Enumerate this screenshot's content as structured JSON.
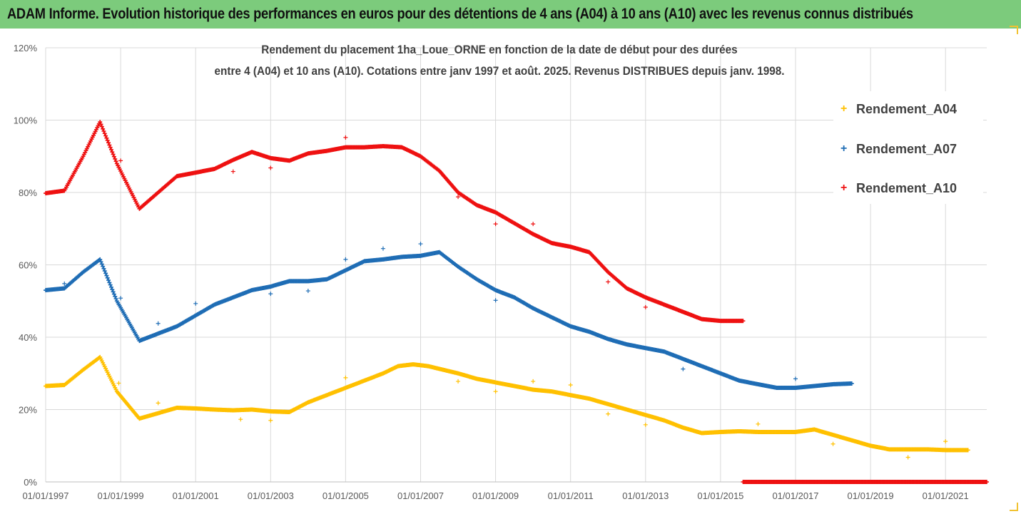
{
  "header": {
    "title": "ADAM Informe. Evolution historique des performances en euros pour des détentions de 4 ans (A04) à 10 ans (A10) avec les revenus connus distribués"
  },
  "chart_data": {
    "type": "scatter",
    "title": "Rendement du placement 1ha_Loue_ORNE en fonction de la date de début pour des durées",
    "subtitle": "entre 4 (A04) et 10 ans (A10). Cotations entre janv 1997 et août. 2025. Revenus DISTRIBUES depuis janv. 1998.",
    "xlabel": "",
    "ylabel": "",
    "x_ticks": [
      "01/01/1997",
      "01/01/1999",
      "01/01/2001",
      "01/01/2003",
      "01/01/2005",
      "01/01/2007",
      "01/01/2009",
      "01/01/2011",
      "01/01/2013",
      "01/01/2015",
      "01/01/2017",
      "01/01/2019",
      "01/01/2021"
    ],
    "y_ticks": [
      "0%",
      "20%",
      "40%",
      "60%",
      "80%",
      "100%",
      "120%"
    ],
    "xlim": [
      1997.0,
      2022.1
    ],
    "ylim": [
      0,
      120
    ],
    "y_unit": "%",
    "grid": true,
    "legend_position": "right",
    "series": [
      {
        "name": "Rendement_A04",
        "color": "#ffc000",
        "points": [
          [
            1997.0,
            26.5
          ],
          [
            1997.5,
            26.8
          ],
          [
            1998.0,
            31
          ],
          [
            1998.45,
            34.5
          ],
          [
            1998.9,
            25
          ],
          [
            1999.5,
            17.5
          ],
          [
            2000.0,
            19
          ],
          [
            2000.5,
            20.5
          ],
          [
            2001.0,
            20.3
          ],
          [
            2001.5,
            20
          ],
          [
            2002.0,
            19.8
          ],
          [
            2002.5,
            20
          ],
          [
            2003.0,
            19.5
          ],
          [
            2003.5,
            19.3
          ],
          [
            2004.0,
            22
          ],
          [
            2004.5,
            24
          ],
          [
            2005.0,
            26
          ],
          [
            2005.5,
            28
          ],
          [
            2006.0,
            30
          ],
          [
            2006.4,
            32
          ],
          [
            2006.8,
            32.5
          ],
          [
            2007.2,
            32
          ],
          [
            2007.6,
            31
          ],
          [
            2008.0,
            30
          ],
          [
            2008.5,
            28.5
          ],
          [
            2009.0,
            27.5
          ],
          [
            2009.5,
            26.5
          ],
          [
            2010.0,
            25.5
          ],
          [
            2010.5,
            25
          ],
          [
            2011.0,
            24
          ],
          [
            2011.5,
            23
          ],
          [
            2012.0,
            21.5
          ],
          [
            2012.5,
            20
          ],
          [
            2013.0,
            18.5
          ],
          [
            2013.5,
            17
          ],
          [
            2014.0,
            15
          ],
          [
            2014.5,
            13.5
          ],
          [
            2015.0,
            13.8
          ],
          [
            2015.5,
            14
          ],
          [
            2016.0,
            13.8
          ],
          [
            2016.5,
            13.8
          ],
          [
            2017.0,
            13.8
          ],
          [
            2017.5,
            14.5
          ],
          [
            2018.0,
            13
          ],
          [
            2018.5,
            11.5
          ],
          [
            2019.0,
            10
          ],
          [
            2019.5,
            9
          ],
          [
            2020.0,
            9
          ],
          [
            2020.5,
            9
          ],
          [
            2021.0,
            8.8
          ],
          [
            2021.6,
            8.8
          ]
        ],
        "outliers": [
          [
            1998.95,
            27.3
          ],
          [
            2000.0,
            21.8
          ],
          [
            2002.2,
            17.3
          ],
          [
            2003.0,
            17
          ],
          [
            2005.0,
            28.8
          ],
          [
            2008.0,
            27.8
          ],
          [
            2009.0,
            25
          ],
          [
            2010.0,
            27.8
          ],
          [
            2011.0,
            26.8
          ],
          [
            2012.0,
            18.8
          ],
          [
            2013.0,
            15.8
          ],
          [
            2016.0,
            16
          ],
          [
            2018.0,
            10.5
          ],
          [
            2020.0,
            6.8
          ],
          [
            2021.0,
            11.2
          ]
        ]
      },
      {
        "name": "Rendement_A07",
        "color": "#1f6db5",
        "points": [
          [
            1997.0,
            53
          ],
          [
            1997.5,
            53.5
          ],
          [
            1998.0,
            58
          ],
          [
            1998.45,
            61.5
          ],
          [
            1998.9,
            50
          ],
          [
            1999.5,
            39
          ],
          [
            2000.0,
            41
          ],
          [
            2000.5,
            43
          ],
          [
            2001.0,
            46
          ],
          [
            2001.5,
            49
          ],
          [
            2002.0,
            51
          ],
          [
            2002.5,
            53
          ],
          [
            2003.0,
            54
          ],
          [
            2003.5,
            55.5
          ],
          [
            2004.0,
            55.5
          ],
          [
            2004.5,
            56
          ],
          [
            2005.0,
            58.5
          ],
          [
            2005.5,
            61
          ],
          [
            2006.0,
            61.5
          ],
          [
            2006.5,
            62.2
          ],
          [
            2007.0,
            62.5
          ],
          [
            2007.5,
            63.5
          ],
          [
            2008.0,
            59.5
          ],
          [
            2008.5,
            56
          ],
          [
            2009.0,
            53
          ],
          [
            2009.5,
            51
          ],
          [
            2010.0,
            48
          ],
          [
            2010.5,
            45.5
          ],
          [
            2011.0,
            43
          ],
          [
            2011.5,
            41.5
          ],
          [
            2012.0,
            39.5
          ],
          [
            2012.5,
            38
          ],
          [
            2013.0,
            37
          ],
          [
            2013.5,
            36
          ],
          [
            2014.0,
            34
          ],
          [
            2014.5,
            32
          ],
          [
            2015.0,
            30
          ],
          [
            2015.5,
            28
          ],
          [
            2016.0,
            27
          ],
          [
            2016.5,
            26
          ],
          [
            2017.0,
            26
          ],
          [
            2017.5,
            26.5
          ],
          [
            2018.0,
            27
          ],
          [
            2018.5,
            27.2
          ]
        ],
        "outliers": [
          [
            1997.5,
            54.8
          ],
          [
            1999.0,
            50.8
          ],
          [
            2000.0,
            43.8
          ],
          [
            2001.0,
            49.3
          ],
          [
            2003.0,
            52
          ],
          [
            2004.0,
            52.8
          ],
          [
            2005.0,
            61.5
          ],
          [
            2006.0,
            64.5
          ],
          [
            2007.0,
            65.8
          ],
          [
            2009.0,
            50.2
          ],
          [
            2014.0,
            31.2
          ],
          [
            2017.0,
            28.5
          ]
        ]
      },
      {
        "name": "Rendement_A10",
        "color": "#ee1111",
        "points": [
          [
            1997.0,
            79.8
          ],
          [
            1997.5,
            80.5
          ],
          [
            1998.0,
            90
          ],
          [
            1998.45,
            99.5
          ],
          [
            1998.9,
            88
          ],
          [
            1999.5,
            75.5
          ],
          [
            2000.0,
            80
          ],
          [
            2000.5,
            84.5
          ],
          [
            2001.0,
            85.5
          ],
          [
            2001.5,
            86.5
          ],
          [
            2002.0,
            89
          ],
          [
            2002.5,
            91.2
          ],
          [
            2003.0,
            89.5
          ],
          [
            2003.5,
            88.8
          ],
          [
            2004.0,
            90.8
          ],
          [
            2004.5,
            91.5
          ],
          [
            2005.0,
            92.5
          ],
          [
            2005.5,
            92.5
          ],
          [
            2006.0,
            92.8
          ],
          [
            2006.5,
            92.5
          ],
          [
            2007.0,
            90
          ],
          [
            2007.5,
            86
          ],
          [
            2008.0,
            80
          ],
          [
            2008.5,
            76.5
          ],
          [
            2009.0,
            74.5
          ],
          [
            2009.5,
            71.5
          ],
          [
            2010.0,
            68.5
          ],
          [
            2010.5,
            66
          ],
          [
            2011.0,
            65
          ],
          [
            2011.5,
            63.5
          ],
          [
            2012.0,
            58
          ],
          [
            2012.5,
            53.5
          ],
          [
            2013.0,
            51
          ],
          [
            2013.5,
            49
          ],
          [
            2014.0,
            47
          ],
          [
            2014.5,
            45
          ],
          [
            2015.0,
            44.5
          ],
          [
            2015.6,
            44.5
          ]
        ],
        "outliers": [
          [
            1999.0,
            88.8
          ],
          [
            2002.0,
            85.8
          ],
          [
            2003.0,
            86.8
          ],
          [
            2005.0,
            95.2
          ],
          [
            2008.0,
            78.8
          ],
          [
            2009.0,
            71.3
          ],
          [
            2010.0,
            71.3
          ],
          [
            2012.0,
            55.3
          ],
          [
            2013.0,
            48.3
          ]
        ],
        "zero_segment": [
          2015.6,
          2022.1
        ]
      }
    ]
  }
}
